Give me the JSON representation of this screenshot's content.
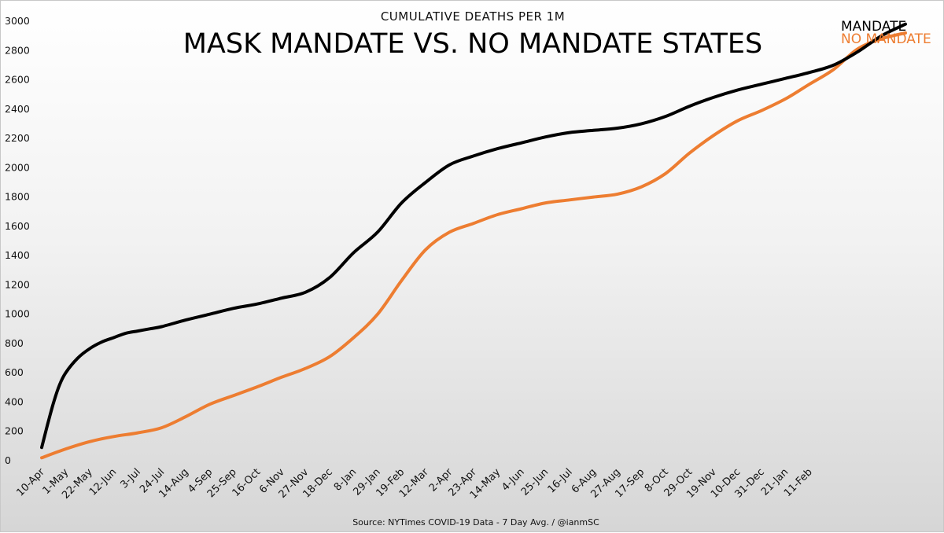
{
  "chart_data": {
    "type": "line",
    "subtitle": "CUMULATIVE  DEATHS PER 1M",
    "title": "MASK MANDATE VS. NO MANDATE STATES",
    "source": "Source: NYTimes COVID-19 Data - 7 Day Avg. / @ianmSC",
    "xlabel": "",
    "ylabel": "",
    "ylim": [
      0,
      3000
    ],
    "y_ticks": [
      0,
      200,
      400,
      600,
      800,
      1000,
      1200,
      1400,
      1600,
      1800,
      2000,
      2200,
      2400,
      2600,
      2800,
      3000
    ],
    "grid": false,
    "legend": "top-right, at line ends",
    "categories": [
      "10-Apr",
      "1-May",
      "22-May",
      "12-Jun",
      "3-Jul",
      "24-Jul",
      "14-Aug",
      "4-Sep",
      "25-Sep",
      "16-Oct",
      "6-Nov",
      "27-Nov",
      "18-Dec",
      "8-Jan",
      "29-Jan",
      "19-Feb",
      "12-Mar",
      "2-Apr",
      "23-Apr",
      "14-May",
      "4-Jun",
      "25-Jun",
      "16-Jul",
      "6-Aug",
      "27-Aug",
      "17-Sep",
      "8-Oct",
      "29-Oct",
      "19-Nov",
      "10-Dec",
      "31-Dec",
      "21-Jan",
      "11-Feb"
    ],
    "series": [
      {
        "name": "MANDATE",
        "color": "#000000",
        "points": [
          [
            0,
            90
          ],
          [
            0.25,
            250
          ],
          [
            0.5,
            400
          ],
          [
            0.75,
            520
          ],
          [
            1,
            600
          ],
          [
            1.5,
            700
          ],
          [
            2,
            765
          ],
          [
            2.5,
            810
          ],
          [
            3,
            840
          ],
          [
            3.5,
            870
          ],
          [
            4,
            885
          ],
          [
            4.5,
            900
          ],
          [
            5,
            915
          ],
          [
            6,
            960
          ],
          [
            7,
            1000
          ],
          [
            8,
            1040
          ],
          [
            9,
            1070
          ],
          [
            10,
            1110
          ],
          [
            11,
            1150
          ],
          [
            12,
            1250
          ],
          [
            13,
            1420
          ],
          [
            14,
            1560
          ],
          [
            15,
            1760
          ],
          [
            16,
            1900
          ],
          [
            17,
            2020
          ],
          [
            18,
            2080
          ],
          [
            19,
            2130
          ],
          [
            20,
            2170
          ],
          [
            21,
            2210
          ],
          [
            22,
            2240
          ],
          [
            23,
            2255
          ],
          [
            24,
            2270
          ],
          [
            25,
            2300
          ],
          [
            26,
            2350
          ],
          [
            27,
            2420
          ],
          [
            28,
            2480
          ],
          [
            29,
            2530
          ],
          [
            30,
            2570
          ],
          [
            31,
            2610
          ],
          [
            32,
            2650
          ],
          [
            33,
            2700
          ],
          [
            34,
            2790
          ],
          [
            35,
            2900
          ],
          [
            36,
            2980
          ]
        ]
      },
      {
        "name": "NO MANDATE",
        "color": "#ed7d31",
        "points": [
          [
            0,
            20
          ],
          [
            1,
            80
          ],
          [
            2,
            130
          ],
          [
            3,
            165
          ],
          [
            4,
            190
          ],
          [
            5,
            225
          ],
          [
            6,
            300
          ],
          [
            7,
            385
          ],
          [
            8,
            445
          ],
          [
            9,
            505
          ],
          [
            10,
            570
          ],
          [
            11,
            630
          ],
          [
            12,
            710
          ],
          [
            13,
            840
          ],
          [
            14,
            1000
          ],
          [
            15,
            1230
          ],
          [
            16,
            1440
          ],
          [
            17,
            1560
          ],
          [
            18,
            1620
          ],
          [
            19,
            1680
          ],
          [
            20,
            1720
          ],
          [
            21,
            1760
          ],
          [
            22,
            1780
          ],
          [
            23,
            1800
          ],
          [
            24,
            1820
          ],
          [
            25,
            1870
          ],
          [
            26,
            1960
          ],
          [
            27,
            2100
          ],
          [
            28,
            2220
          ],
          [
            29,
            2320
          ],
          [
            30,
            2390
          ],
          [
            31,
            2470
          ],
          [
            32,
            2570
          ],
          [
            33,
            2670
          ],
          [
            34,
            2810
          ],
          [
            35,
            2880
          ],
          [
            36,
            2920
          ]
        ]
      }
    ]
  }
}
